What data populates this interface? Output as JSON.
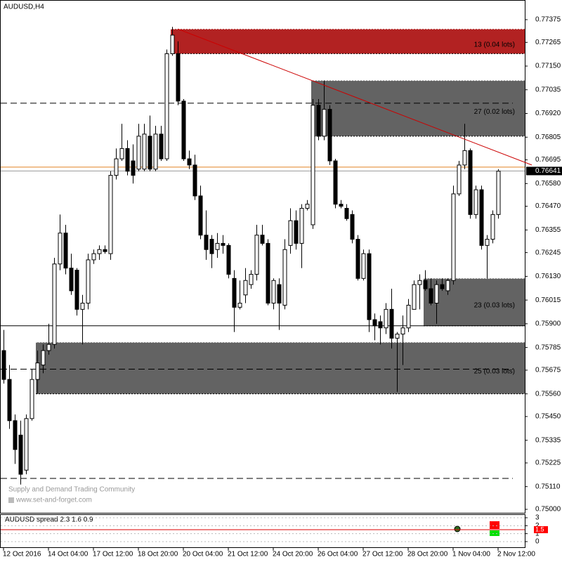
{
  "chart_data": {
    "type": "candlestick",
    "title": "AUDUSD,H4",
    "categories": [
      "12 Oct 2016",
      null,
      null,
      null,
      null,
      null,
      null,
      null,
      "14 Oct 04:00",
      null,
      null,
      null,
      null,
      null,
      null,
      null,
      "17 Oct 12:00",
      null,
      null,
      null,
      null,
      null,
      null,
      null,
      "18 Oct 20:00",
      null,
      null,
      null,
      null,
      null,
      null,
      null,
      "20 Oct 04:00",
      null,
      null,
      null,
      null,
      null,
      null,
      null,
      "21 Oct 12:00",
      null,
      null,
      null,
      null,
      null,
      null,
      null,
      "24 Oct 20:00",
      null,
      null,
      null,
      null,
      null,
      null,
      null,
      "26 Oct 04:00",
      null,
      null,
      null,
      null,
      null,
      null,
      null,
      "27 Oct 12:00",
      null,
      null,
      null,
      null,
      null,
      null,
      null,
      "28 Oct 20:00",
      null,
      null,
      null,
      null,
      null,
      null,
      null,
      "1 Nov 04:00",
      null,
      null,
      null,
      null,
      null,
      null,
      null,
      "2 Nov 12:00"
    ],
    "open": [
      0.7577,
      0.7563,
      0.7543,
      0.7536,
      0.7519,
      0.7544,
      0.7563,
      0.757,
      0.7577,
      0.758,
      0.7619,
      0.7634,
      0.7617,
      0.7616,
      0.7597,
      0.76,
      0.7621,
      0.7624,
      0.7626,
      0.7624,
      0.7662,
      0.767,
      0.7675,
      0.7669,
      0.7665,
      0.7665,
      0.7681,
      0.7665,
      0.7682,
      0.767,
      0.7721,
      0.7721,
      0.7698,
      0.767,
      0.7667,
      0.7652,
      0.7633,
      0.7631,
      0.7626,
      0.7629,
      0.7628,
      0.7612,
      0.7598,
      0.7604,
      0.7609,
      0.7614,
      0.7633,
      0.7629,
      0.76,
      0.7609,
      0.7599,
      0.7628,
      0.764,
      0.7629,
      0.7646,
      0.7638,
      0.7696,
      0.7681,
      0.7694,
      0.7669,
      0.7648,
      0.7646,
      0.7643,
      0.7631,
      0.7612,
      0.7624,
      0.7592,
      0.7591,
      0.7588,
      0.7597,
      0.7583,
      0.7585,
      0.7588,
      0.7597,
      0.7609,
      0.7611,
      0.7607,
      0.76,
      0.7609,
      0.7606,
      0.7611,
      0.7653,
      0.7667,
      0.7674,
      0.7643,
      0.7655,
      0.7628,
      0.7631,
      0.7643
    ],
    "high": [
      0.7587,
      0.757,
      0.7546,
      0.7543,
      0.7546,
      0.7568,
      0.7577,
      0.758,
      0.759,
      0.7622,
      0.7643,
      0.7638,
      0.7624,
      0.7617,
      0.7604,
      0.7624,
      0.7626,
      0.7628,
      0.7628,
      0.7664,
      0.7675,
      0.7687,
      0.7679,
      0.7677,
      0.7687,
      0.7687,
      0.7691,
      0.7686,
      0.7686,
      0.7723,
      0.7734,
      0.7727,
      0.7699,
      0.7674,
      0.7672,
      0.7657,
      0.7645,
      0.7633,
      0.7634,
      0.7633,
      0.7629,
      0.7616,
      0.7611,
      0.7617,
      0.7616,
      0.7638,
      0.7638,
      0.7631,
      0.7612,
      0.7612,
      0.7631,
      0.7646,
      0.7645,
      0.7648,
      0.765,
      0.7699,
      0.7699,
      0.7708,
      0.7696,
      0.767,
      0.765,
      0.7648,
      0.7645,
      0.7633,
      0.7626,
      0.7626,
      0.7595,
      0.7594,
      0.76,
      0.7607,
      0.7586,
      0.7594,
      0.7602,
      0.7611,
      0.7614,
      0.7616,
      0.7612,
      0.7611,
      0.7612,
      0.7612,
      0.7657,
      0.7669,
      0.7687,
      0.7675,
      0.7657,
      0.7657,
      0.7633,
      0.7645,
      0.7665
    ],
    "low": [
      0.7561,
      0.7539,
      0.7522,
      0.7512,
      0.7517,
      0.7543,
      0.7556,
      0.7566,
      0.7575,
      0.7578,
      0.7616,
      0.7614,
      0.7604,
      0.7594,
      0.758,
      0.7597,
      0.7619,
      0.7621,
      0.7624,
      0.7621,
      0.766,
      0.7669,
      0.7662,
      0.7658,
      0.7664,
      0.7664,
      0.7664,
      0.7664,
      0.7669,
      0.7669,
      0.772,
      0.7696,
      0.7669,
      0.7665,
      0.765,
      0.7631,
      0.7621,
      0.7617,
      0.7622,
      0.7624,
      0.7612,
      0.7586,
      0.7597,
      0.76,
      0.7607,
      0.7611,
      0.7628,
      0.7599,
      0.7597,
      0.7587,
      0.7597,
      0.7624,
      0.7626,
      0.7617,
      0.7645,
      0.7636,
      0.7679,
      0.7679,
      0.7667,
      0.7646,
      0.7646,
      0.764,
      0.7629,
      0.7611,
      0.7611,
      0.7586,
      0.7582,
      0.758,
      0.7585,
      0.7578,
      0.7557,
      0.757,
      0.7586,
      0.7597,
      0.7597,
      0.7606,
      0.7599,
      0.759,
      0.7606,
      0.7604,
      0.7609,
      0.7652,
      0.7665,
      0.7641,
      0.7641,
      0.7626,
      0.7612,
      0.7629,
      0.7641
    ],
    "close": [
      0.7563,
      0.7543,
      0.7529,
      0.7517,
      0.7544,
      0.7563,
      0.7571,
      0.7577,
      0.758,
      0.7619,
      0.7634,
      0.7617,
      0.7606,
      0.7597,
      0.76,
      0.7621,
      0.7624,
      0.7626,
      0.7625,
      0.7662,
      0.767,
      0.7675,
      0.7664,
      0.7662,
      0.7681,
      0.7682,
      0.7665,
      0.7682,
      0.767,
      0.7721,
      0.773,
      0.7698,
      0.767,
      0.7667,
      0.7652,
      0.7633,
      0.7626,
      0.7624,
      0.7629,
      0.7628,
      0.7614,
      0.7598,
      0.76,
      0.7611,
      0.7614,
      0.7633,
      0.7629,
      0.76,
      0.7611,
      0.76,
      0.7626,
      0.764,
      0.7629,
      0.7646,
      0.7648,
      0.7696,
      0.7681,
      0.7694,
      0.7669,
      0.7648,
      0.7647,
      0.7641,
      0.7631,
      0.7612,
      0.7624,
      0.7592,
      0.7589,
      0.7588,
      0.7597,
      0.7583,
      0.7585,
      0.7588,
      0.7599,
      0.7609,
      0.7611,
      0.7607,
      0.76,
      0.7609,
      0.7607,
      0.7611,
      0.7653,
      0.7667,
      0.7674,
      0.7643,
      0.7655,
      0.7628,
      0.7631,
      0.7643,
      0.7664
    ],
    "ylim": [
      0.75,
      0.77375
    ],
    "yticks": [
      0.77375,
      0.77265,
      {
        "value": 0.7715,
        "label": "0.77150"
      },
      0.77035,
      {
        "value": 0.7692,
        "label": "0.76920"
      },
      0.76805,
      0.76695,
      {
        "value": 0.7658,
        "label": "0.76580"
      },
      {
        "value": 0.7647,
        "label": "0.76470"
      },
      0.76355,
      0.76245,
      {
        "value": 0.7613,
        "label": "0.76130"
      },
      0.76015,
      {
        "value": 0.759,
        "label": "0.75900"
      },
      0.75785,
      0.75675,
      {
        "value": 0.7556,
        "label": "0.75560"
      },
      {
        "value": 0.7545,
        "label": "0.75450"
      },
      0.75335,
      0.75225,
      {
        "value": 0.7511,
        "label": "0.75110"
      },
      {
        "value": 0.75,
        "label": "0.75000"
      }
    ],
    "last_price": 0.76641,
    "zones": [
      {
        "label": "13 (0.04 lots)",
        "start": 30,
        "top": 0.7733,
        "bottom": 0.7721,
        "color": "#b22222"
      },
      {
        "label": "27 (0.02 lots)",
        "start": 55,
        "top": 0.7708,
        "bottom": 0.7681,
        "color": "#636363"
      },
      {
        "label": "23 (0.03 lots)",
        "start": 75,
        "top": 0.7612,
        "bottom": 0.7589,
        "color": "#636363"
      },
      {
        "label": "25 (0.03 lots)",
        "start": 6,
        "top": 0.7581,
        "bottom": 0.7556,
        "color": "#636363"
      }
    ],
    "hlines": [
      {
        "value": 0.7697,
        "style": "dashed",
        "color": "#000"
      },
      {
        "value": 0.7589,
        "style": "solid",
        "color": "#000"
      },
      {
        "value": 0.7568,
        "style": "dashed",
        "color": "#000"
      },
      {
        "value": 0.7515,
        "style": "dashed",
        "color": "#000"
      },
      {
        "value": 0.7666,
        "style": "solid",
        "color": "#e08020"
      }
    ],
    "trendline": {
      "from": [
        31,
        0.7733
      ],
      "to": [
        94,
        0.7667
      ],
      "color": "#cc0000"
    },
    "watermark": [
      "Supply and Demand Trading Community",
      "www.set-and-forget.com"
    ],
    "indicator": {
      "title": "AUDUSD spread 2.3 1.6 0.9",
      "ylim": [
        0,
        3
      ],
      "yticks": [
        0,
        1,
        2,
        3
      ],
      "value": 1.5
    }
  }
}
